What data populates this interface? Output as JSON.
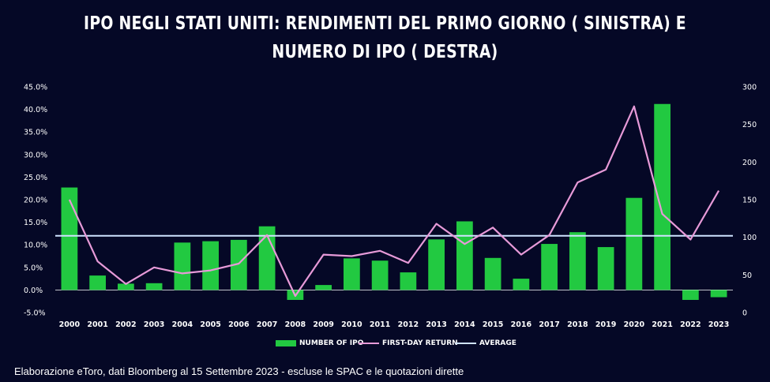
{
  "title": {
    "line1": "IPO negli Stati Uniti: rendimenti del primo giorno ( sinistra) e",
    "line2": "numero di IPO ( destra)"
  },
  "source": "Elaborazione eToro, dati Bloomberg al 15 Settembre 2023 - escluse le SPAC e le quotazioni dirette",
  "colors": {
    "background": "#050826",
    "bars": "#22c941",
    "first_day_return": "#e79ad8",
    "average": "#cfe3ff"
  },
  "legend": {
    "bars": "Number of IPO",
    "line": "First-day return",
    "average": "Average"
  },
  "chart_data": {
    "type": "bar",
    "categories": [
      "2000",
      "2001",
      "2002",
      "2003",
      "2004",
      "2005",
      "2006",
      "2007",
      "2008",
      "2009",
      "2010",
      "2011",
      "2012",
      "2013",
      "2014",
      "2015",
      "2016",
      "2017",
      "2018",
      "2019",
      "2020",
      "2021",
      "2022",
      "2023"
    ],
    "series": [
      {
        "name": "Number of IPO",
        "type": "bar",
        "axis": "left",
        "values": [
          22.7,
          3.2,
          1.4,
          1.5,
          10.5,
          10.8,
          11.1,
          14.1,
          -2.2,
          1.1,
          7.0,
          6.5,
          3.9,
          11.2,
          15.2,
          7.1,
          2.5,
          10.2,
          12.8,
          9.5,
          20.4,
          41.2,
          -2.2,
          -1.6
        ]
      },
      {
        "name": "First-day return",
        "type": "line",
        "axis": "right",
        "values": [
          150,
          68,
          38,
          60,
          52,
          56,
          65,
          103,
          22,
          77,
          75,
          82,
          66,
          118,
          91,
          113,
          77,
          103,
          173,
          190,
          274,
          131,
          97,
          162
        ]
      },
      {
        "name": "Average",
        "type": "line",
        "axis": "left",
        "values": [
          12,
          12,
          12,
          12,
          12,
          12,
          12,
          12,
          12,
          12,
          12,
          12,
          12,
          12,
          12,
          12,
          12,
          12,
          12,
          12,
          12,
          12,
          12,
          12
        ]
      }
    ],
    "yleft": {
      "lim": [
        -5,
        45
      ],
      "ticks": [
        "-5.0%",
        "0.0%",
        "5.0%",
        "10.0%",
        "15.0%",
        "20.0%",
        "25.0%",
        "30.0%",
        "35.0%",
        "40.0%",
        "45.0%"
      ],
      "tick_values": [
        -5,
        0,
        5,
        10,
        15,
        20,
        25,
        30,
        35,
        40,
        45
      ]
    },
    "yright": {
      "lim": [
        0,
        300
      ],
      "ticks": [
        "0",
        "50",
        "100",
        "150",
        "200",
        "250",
        "300"
      ],
      "tick_values": [
        0,
        50,
        100,
        150,
        200,
        250,
        300
      ]
    },
    "grid": false,
    "legend_position": "bottom"
  }
}
